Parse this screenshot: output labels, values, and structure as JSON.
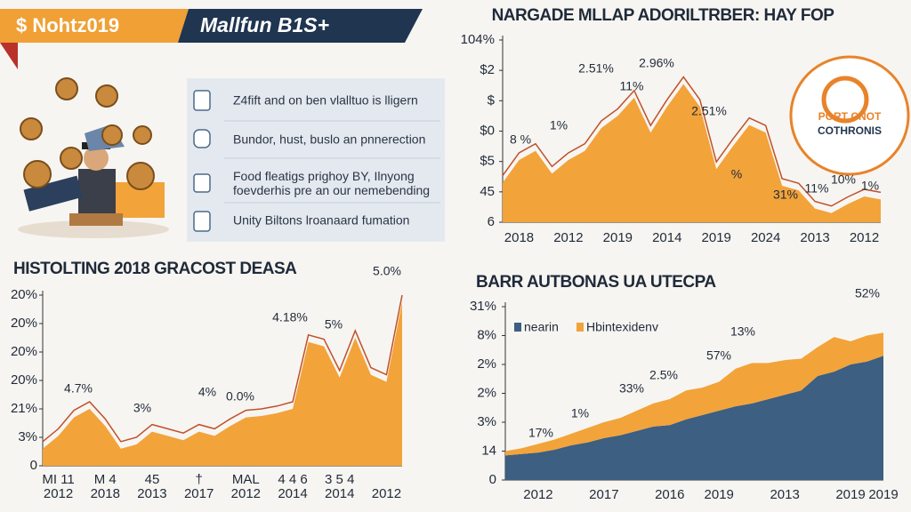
{
  "header": {
    "badge": "$ Nohtz019",
    "banner": "Mallfun B1S+"
  },
  "list": [
    "Z4fift and on ben vlalltuo is lligern",
    "Bundor, hust, buslo an pnnerection",
    "Food fleatigs prighoy BY, Ilnyong foevderhis pre an our nemebending",
    "Unity Biltons lroanaard fumation"
  ],
  "logo": {
    "line1": "PORT CNOT",
    "line2": "COTHRONIS"
  },
  "chart_data": [
    {
      "type": "area",
      "title": "NARGADE MLLAP ADORILTRBER: HAY FOP",
      "color": "#f2a33a",
      "categories": [
        null,
        "2018",
        null,
        null,
        "2012",
        null,
        null,
        "2019",
        null,
        null,
        "2014",
        null,
        null,
        "2019",
        null,
        null,
        "2024",
        null,
        null,
        "2013",
        null,
        null,
        "2012",
        null
      ],
      "values": [
        1.3,
        2.05,
        2.35,
        1.6,
        2.05,
        2.35,
        3.1,
        3.5,
        4.1,
        2.95,
        3.8,
        4.55,
        3.8,
        1.75,
        2.5,
        3.2,
        2.95,
        1.2,
        1.05,
        0.45,
        0.3,
        0.6,
        0.85,
        0.75
      ],
      "ylim": [
        0,
        6
      ],
      "yticks": [
        {
          "value": 0,
          "label": "6"
        },
        {
          "value": 1,
          "label": "45"
        },
        {
          "value": 2,
          "label": "$5"
        },
        {
          "value": 3,
          "label": "$0"
        },
        {
          "value": 4,
          "label": "$"
        },
        {
          "value": 5,
          "label": "$2"
        },
        {
          "value": 6,
          "label": "104%"
        }
      ],
      "annotations": [
        "2.51%",
        "2.96%",
        "11%",
        "1%",
        "8 %",
        "2.51%",
        "%",
        "31%",
        "11%",
        "10%",
        "1%"
      ]
    },
    {
      "type": "area",
      "title": "HISTOLTING 2018 GRACOST DEASA",
      "color": "#f2a33a",
      "categories": [
        null,
        "MI 11",
        null,
        null,
        "M 4",
        null,
        null,
        "45",
        null,
        null,
        "†",
        null,
        null,
        "MAL",
        null,
        null,
        "4 4 6",
        null,
        null,
        "3 5 4",
        null,
        null,
        null,
        null
      ],
      "years": [
        null,
        "2012",
        null,
        null,
        "2018",
        null,
        null,
        "2013",
        null,
        null,
        "2017",
        null,
        null,
        "2012",
        null,
        null,
        "2014",
        null,
        null,
        "2014",
        null,
        null,
        "2012",
        null
      ],
      "values": [
        0.6,
        1.05,
        1.7,
        2.0,
        1.4,
        0.6,
        0.75,
        1.2,
        1.05,
        0.9,
        1.2,
        1.05,
        1.4,
        1.7,
        1.75,
        1.85,
        2.0,
        4.35,
        4.2,
        3.1,
        4.5,
        3.2,
        2.95,
        5.75
      ],
      "ylim": [
        0,
        6
      ],
      "yticks": [
        0,
        {
          "value": 1,
          "label": "3%"
        },
        {
          "value": 2,
          "label": "21%"
        },
        {
          "value": 3,
          "label": "20%"
        },
        {
          "value": 4,
          "label": "20%"
        },
        {
          "value": 5,
          "label": "20%"
        },
        {
          "value": 6,
          "label": "20%"
        }
      ],
      "annotations": [
        "4.7%",
        "3%",
        "4%",
        "0.0%",
        "4.18%",
        "5%",
        "5.0%"
      ]
    },
    {
      "type": "stacked_area",
      "title": "BARR AUTBONAS UA UTECPA",
      "categories": [
        null,
        null,
        "2012",
        null,
        null,
        null,
        "2017",
        null,
        null,
        null,
        "2016",
        null,
        null,
        "2019",
        null,
        null,
        null,
        "2013",
        null,
        null,
        null,
        "2019",
        null,
        "2019"
      ],
      "series": [
        {
          "name": "nearin",
          "color": "#3c5f82",
          "values": [
            0.85,
            0.9,
            0.95,
            1.05,
            1.2,
            1.3,
            1.45,
            1.55,
            1.7,
            1.85,
            1.9,
            2.1,
            2.25,
            2.4,
            2.55,
            2.65,
            2.8,
            2.95,
            3.1,
            3.6,
            3.75,
            4.0,
            4.1,
            4.3
          ]
        },
        {
          "name": "Hbintexidenv",
          "color": "#f2a33a",
          "values": [
            0.15,
            0.2,
            0.3,
            0.35,
            0.4,
            0.5,
            0.55,
            0.6,
            0.7,
            0.8,
            0.9,
            1.0,
            0.95,
            1.0,
            1.3,
            1.4,
            1.25,
            1.2,
            1.1,
            1.0,
            1.2,
            0.8,
            0.9,
            0.8
          ]
        }
      ],
      "ylim": [
        0,
        6
      ],
      "yticks": [
        {
          "value": 0,
          "label": "0"
        },
        {
          "value": 1,
          "label": "14"
        },
        {
          "value": 2,
          "label": "3%"
        },
        {
          "value": 3,
          "label": "2%"
        },
        {
          "value": 4,
          "label": "2%"
        },
        {
          "value": 5,
          "label": "8%"
        },
        {
          "value": 6,
          "label": "31%"
        }
      ],
      "annotations": [
        "17%",
        "1%",
        "33%",
        "2.5%",
        "57%",
        "13%",
        "52%"
      ]
    }
  ]
}
